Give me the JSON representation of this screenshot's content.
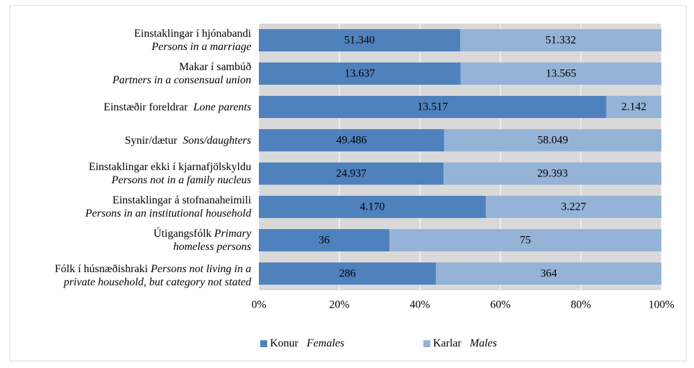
{
  "chart_data": {
    "type": "bar",
    "orientation": "horizontal",
    "stack": "percent",
    "categories": [
      "Einstaklingar í hjónabandi",
      "Makar í sambúð",
      "Einstæðir foreldrar",
      "Synir/dætur",
      "Einstaklingar ekki í kjarnafjölskyldu",
      "Einstaklingar á stofnanaheimili",
      "Útigangsfólk",
      "Fólk í húsnæðishraki"
    ],
    "categories_en": [
      "Persons in a marriage",
      "Partners in a consensual union",
      "Lone parents",
      "Sons/daughters",
      "Persons not in a family nucleus",
      "Persons in an institutional household",
      "Primary homeless persons",
      "Persons not living in a private household, but category not stated"
    ],
    "series": [
      {
        "name": "Konur",
        "name_en": "Females",
        "color": "#4f81bd",
        "values": [
          51340,
          13637,
          13517,
          49486,
          24937,
          4170,
          36,
          286
        ],
        "value_labels": [
          "51.340",
          "13.637",
          "13.517",
          "49.486",
          "24.937",
          "4.170",
          "36",
          "286"
        ]
      },
      {
        "name": "Karlar",
        "name_en": "Males",
        "color": "#95b3d7",
        "values": [
          51332,
          13565,
          2142,
          58049,
          29393,
          3227,
          75,
          364
        ],
        "value_labels": [
          "51.332",
          "13.565",
          "2.142",
          "58.049",
          "29.393",
          "3.227",
          "75",
          "364"
        ]
      }
    ],
    "xlim": [
      0,
      100
    ],
    "xticks": [
      {
        "value": 0,
        "label": "0%"
      },
      {
        "value": 20,
        "label": "20%"
      },
      {
        "value": 40,
        "label": "40%"
      },
      {
        "value": 60,
        "label": "60%"
      },
      {
        "value": 80,
        "label": "80%"
      },
      {
        "value": 100,
        "label": "100%"
      }
    ],
    "grid": true,
    "legend": "bottom"
  }
}
